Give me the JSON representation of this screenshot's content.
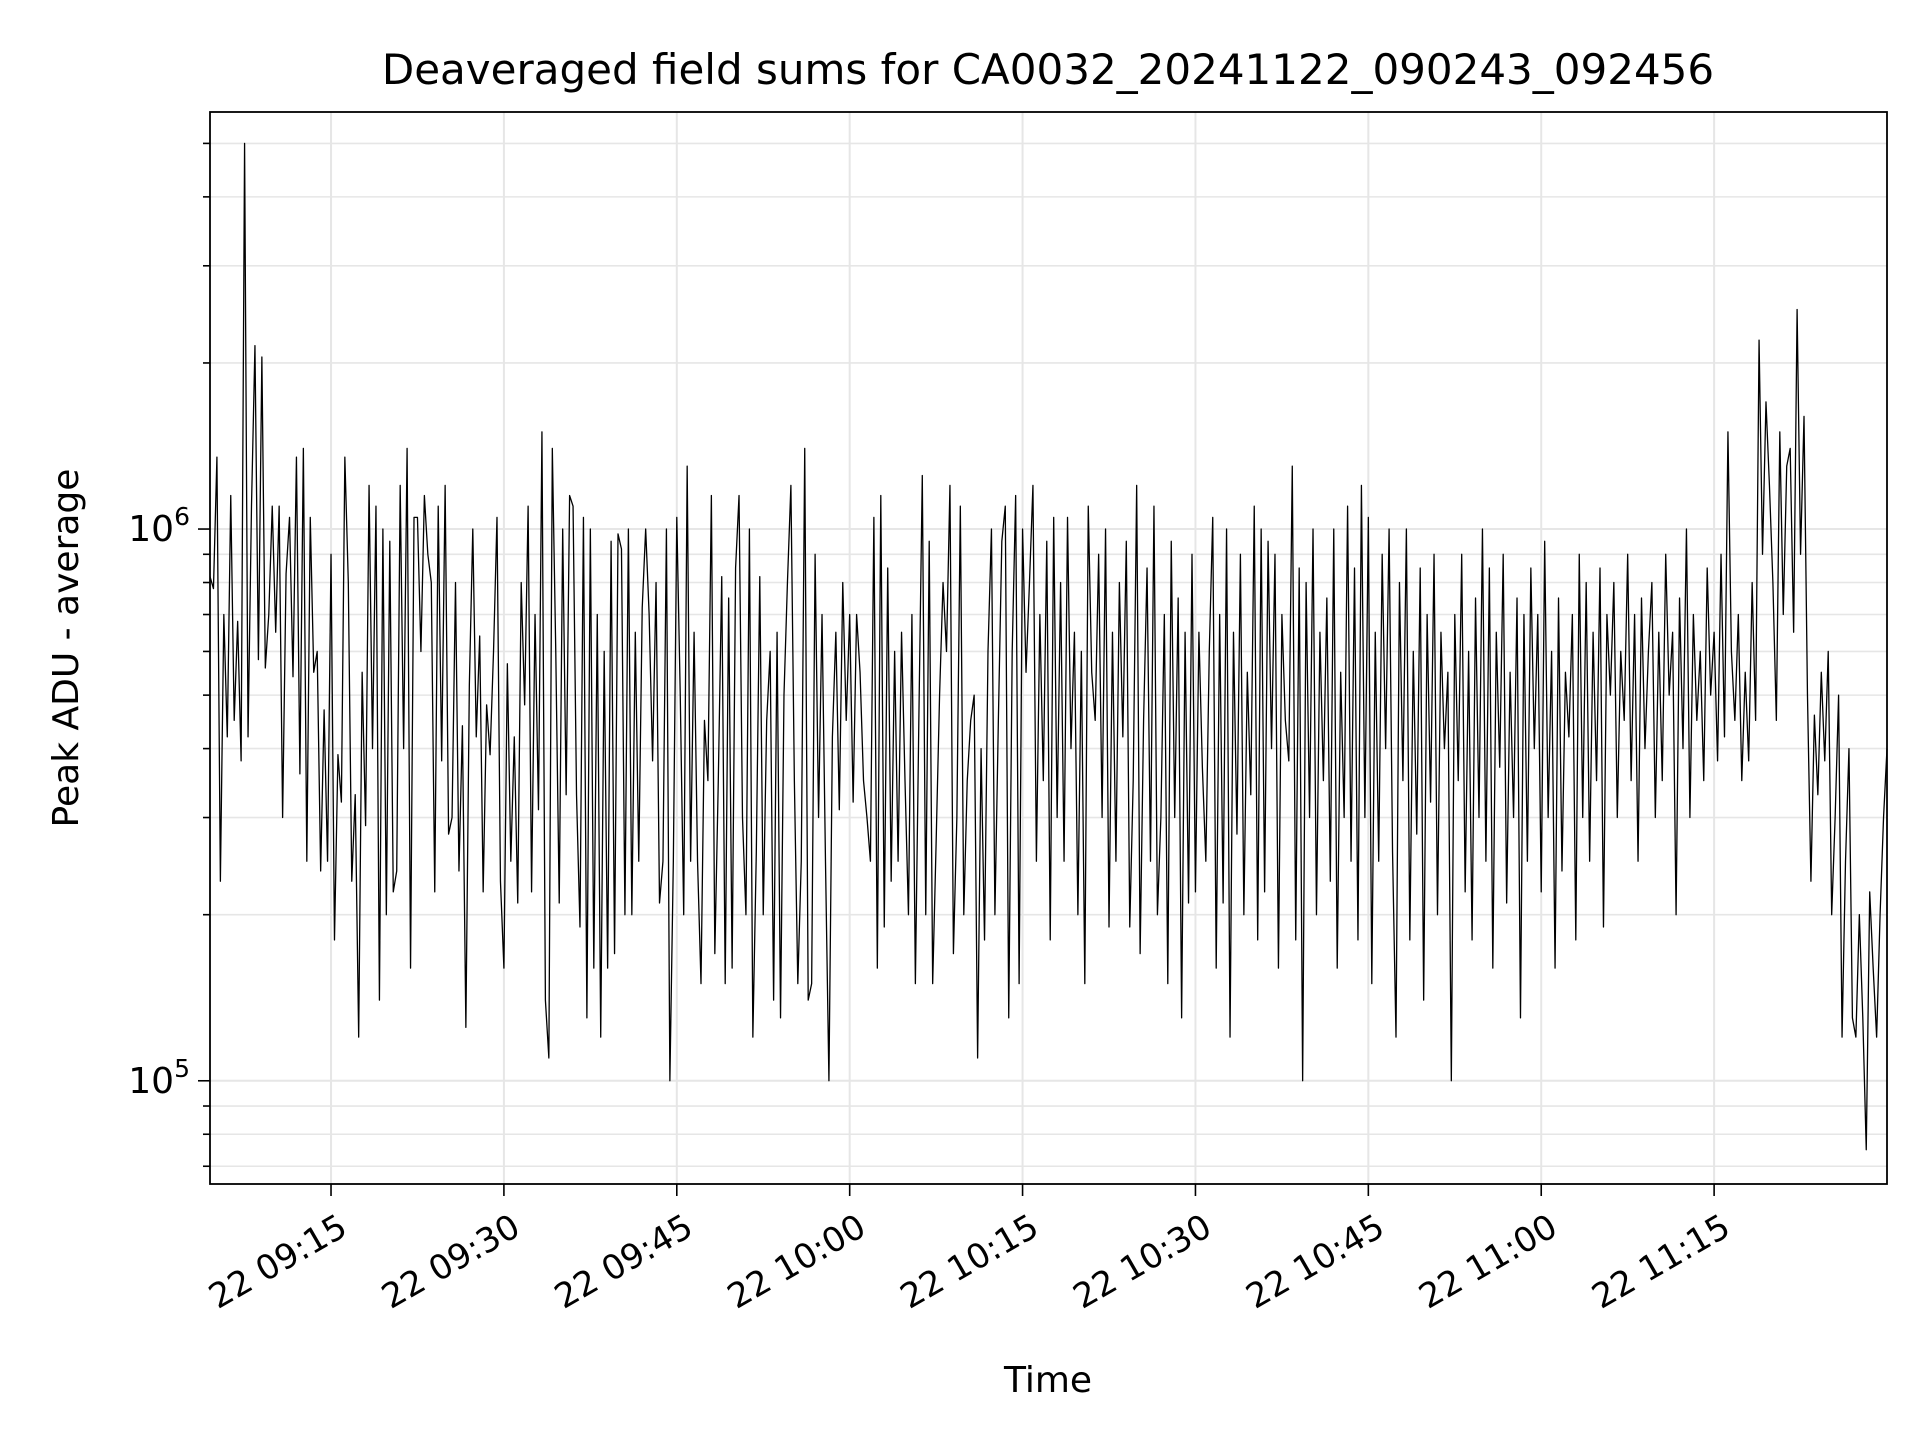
{
  "chart_data": {
    "type": "line",
    "title": "Deaveraged field sums for CA0032_20241122_090243_092456",
    "xlabel": "Time",
    "ylabel": "Peak ADU - average",
    "yscale": "log",
    "ylim": [
      65000,
      5700000
    ],
    "xlim": [
      "2024-11-22 09:04:30",
      "2024-11-22 11:30:00"
    ],
    "grid": true,
    "line_color": "#000000",
    "x_ticks": [
      {
        "time": "2024-11-22 09:15",
        "label": "22 09:15"
      },
      {
        "time": "2024-11-22 09:30",
        "label": "22 09:30"
      },
      {
        "time": "2024-11-22 09:45",
        "label": "22 09:45"
      },
      {
        "time": "2024-11-22 10:00",
        "label": "22 10:00"
      },
      {
        "time": "2024-11-22 10:15",
        "label": "22 10:15"
      },
      {
        "time": "2024-11-22 10:30",
        "label": "22 10:30"
      },
      {
        "time": "2024-11-22 10:45",
        "label": "22 10:45"
      },
      {
        "time": "2024-11-22 11:00",
        "label": "22 11:00"
      },
      {
        "time": "2024-11-22 11:15",
        "label": "22 11:15"
      }
    ],
    "y_ticks": [
      {
        "value": 100000,
        "base": "10",
        "exp": "5"
      },
      {
        "value": 1000000,
        "base": "10",
        "exp": "6"
      }
    ],
    "series": [
      {
        "x_start": "2024-11-22 09:04:30",
        "x_end": "2024-11-22 11:30:00",
        "sampling": "evenly spaced",
        "values": [
          820000,
          780000,
          1350000,
          230000,
          700000,
          420000,
          1150000,
          450000,
          680000,
          380000,
          5000000,
          420000,
          1100000,
          2150000,
          580000,
          2050000,
          560000,
          700000,
          1100000,
          650000,
          1100000,
          300000,
          830000,
          1050000,
          540000,
          1350000,
          360000,
          1400000,
          250000,
          1050000,
          550000,
          600000,
          240000,
          470000,
          250000,
          900000,
          180000,
          390000,
          320000,
          1350000,
          800000,
          230000,
          330000,
          120000,
          550000,
          290000,
          1200000,
          400000,
          1100000,
          140000,
          1000000,
          200000,
          950000,
          220000,
          240000,
          1200000,
          400000,
          1400000,
          160000,
          1050000,
          1050000,
          600000,
          1150000,
          900000,
          800000,
          220000,
          1100000,
          380000,
          1200000,
          280000,
          300000,
          800000,
          240000,
          440000,
          125000,
          520000,
          1000000,
          420000,
          640000,
          220000,
          480000,
          390000,
          600000,
          1050000,
          230000,
          160000,
          570000,
          250000,
          420000,
          210000,
          800000,
          480000,
          1100000,
          220000,
          700000,
          310000,
          1500000,
          140000,
          110000,
          1400000,
          600000,
          210000,
          1000000,
          330000,
          1150000,
          1100000,
          330000,
          190000,
          1050000,
          130000,
          1000000,
          160000,
          700000,
          120000,
          600000,
          160000,
          950000,
          170000,
          980000,
          920000,
          200000,
          1000000,
          200000,
          650000,
          250000,
          720000,
          1000000,
          700000,
          380000,
          800000,
          210000,
          250000,
          1000000,
          100000,
          250000,
          1050000,
          500000,
          200000,
          1300000,
          250000,
          650000,
          250000,
          150000,
          450000,
          350000,
          1150000,
          170000,
          350000,
          820000,
          150000,
          750000,
          160000,
          850000,
          1150000,
          300000,
          200000,
          1000000,
          120000,
          260000,
          820000,
          200000,
          450000,
          600000,
          140000,
          650000,
          130000,
          500000,
          800000,
          1200000,
          350000,
          150000,
          250000,
          1400000,
          140000,
          150000,
          900000,
          300000,
          700000,
          250000,
          100000,
          420000,
          650000,
          310000,
          800000,
          450000,
          700000,
          320000,
          700000,
          550000,
          350000,
          300000,
          250000,
          1050000,
          160000,
          1150000,
          190000,
          850000,
          230000,
          600000,
          250000,
          650000,
          350000,
          200000,
          700000,
          150000,
          450000,
          1250000,
          200000,
          950000,
          150000,
          270000,
          500000,
          800000,
          600000,
          1200000,
          170000,
          300000,
          1100000,
          200000,
          350000,
          450000,
          500000,
          110000,
          400000,
          180000,
          600000,
          1000000,
          200000,
          450000,
          950000,
          1100000,
          130000,
          600000,
          1150000,
          150000,
          1000000,
          550000,
          800000,
          1200000,
          250000,
          700000,
          350000,
          950000,
          180000,
          1050000,
          300000,
          800000,
          250000,
          1050000,
          400000,
          650000,
          200000,
          600000,
          150000,
          1100000,
          550000,
          450000,
          900000,
          300000,
          1000000,
          190000,
          650000,
          250000,
          800000,
          420000,
          950000,
          190000,
          350000,
          1200000,
          170000,
          450000,
          850000,
          250000,
          1100000,
          200000,
          300000,
          700000,
          150000,
          950000,
          300000,
          750000,
          130000,
          650000,
          210000,
          900000,
          220000,
          650000,
          370000,
          250000,
          600000,
          1050000,
          160000,
          700000,
          210000,
          1000000,
          120000,
          650000,
          280000,
          900000,
          200000,
          550000,
          330000,
          1100000,
          180000,
          1000000,
          220000,
          950000,
          400000,
          900000,
          160000,
          700000,
          450000,
          380000,
          1300000,
          180000,
          850000,
          100000,
          800000,
          300000,
          1000000,
          200000,
          650000,
          350000,
          750000,
          230000,
          1000000,
          160000,
          550000,
          300000,
          1100000,
          250000,
          850000,
          180000,
          1200000,
          300000,
          1050000,
          150000,
          650000,
          250000,
          900000,
          400000,
          1000000,
          260000,
          120000,
          800000,
          350000,
          1000000,
          180000,
          600000,
          280000,
          850000,
          140000,
          700000,
          320000,
          900000,
          200000,
          650000,
          400000,
          550000,
          100000,
          700000,
          350000,
          900000,
          220000,
          600000,
          180000,
          750000,
          300000,
          1000000,
          250000,
          850000,
          160000,
          650000,
          370000,
          900000,
          210000,
          550000,
          300000,
          750000,
          130000,
          700000,
          250000,
          850000,
          400000,
          700000,
          220000,
          950000,
          300000,
          600000,
          160000,
          750000,
          240000,
          550000,
          420000,
          700000,
          180000,
          900000,
          300000,
          800000,
          250000,
          650000,
          350000,
          850000,
          190000,
          700000,
          500000,
          800000,
          300000,
          600000,
          450000,
          900000,
          350000,
          700000,
          250000,
          750000,
          400000,
          600000,
          800000,
          300000,
          650000,
          350000,
          900000,
          500000,
          650000,
          200000,
          750000,
          400000,
          1000000,
          300000,
          700000,
          450000,
          600000,
          350000,
          850000,
          500000,
          650000,
          380000,
          900000,
          420000,
          1500000,
          600000,
          450000,
          700000,
          350000,
          550000,
          380000,
          800000,
          450000,
          2200000,
          900000,
          1700000,
          1200000,
          800000,
          450000,
          1500000,
          700000,
          1300000,
          1400000,
          650000,
          2500000,
          900000,
          1600000,
          500000,
          230000,
          460000,
          330000,
          550000,
          380000,
          600000,
          200000,
          300000,
          500000,
          120000,
          250000,
          400000,
          130000,
          120000,
          200000,
          130000,
          75000,
          220000,
          160000,
          120000,
          200000,
          300000,
          400000
        ]
      }
    ]
  }
}
